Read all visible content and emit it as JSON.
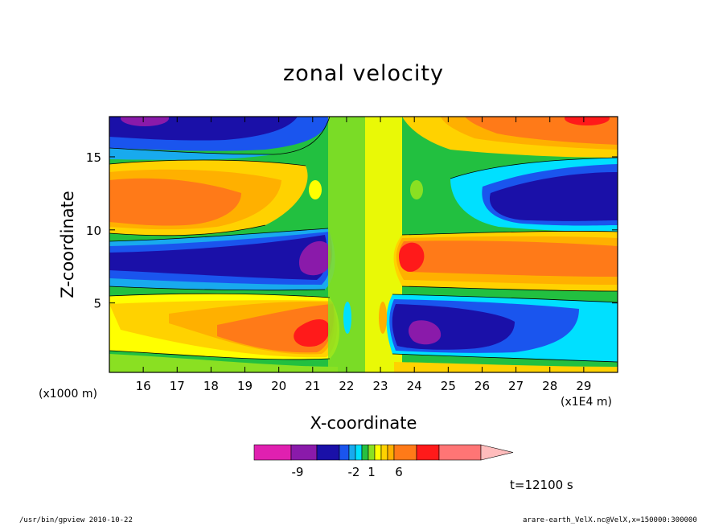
{
  "chart_data": {
    "type": "heatmap",
    "title": "zonal velocity",
    "xlabel": "X-coordinate",
    "ylabel": "Z-coordinate",
    "x_unit_left": "(x1000 m)",
    "x_unit_right": "(x1E4 m)",
    "x_ticks": [
      "16",
      "17",
      "18",
      "19",
      "20",
      "21",
      "22",
      "23",
      "24",
      "25",
      "26",
      "27",
      "28",
      "29"
    ],
    "x_tick_values": [
      16,
      17,
      18,
      19,
      20,
      21,
      22,
      23,
      24,
      25,
      26,
      27,
      28,
      29
    ],
    "xlim": [
      15.0,
      30.0
    ],
    "y_ticks": [
      "5",
      "10",
      "15"
    ],
    "y_tick_values": [
      5,
      10,
      15
    ],
    "ylim": [
      0.25,
      17.75
    ],
    "colorbar": {
      "colors": [
        "#e020b0",
        "#8a1aaa",
        "#1a10a8",
        "#1a55ee",
        "#18aaee",
        "#00e0ff",
        "#26c040",
        "#8ae022",
        "#ffff00",
        "#ffd200",
        "#ffb000",
        "#ff7a18",
        "#ff1a1a",
        "#ff7575",
        "#ffbcbc"
      ],
      "labels": [
        "-9",
        "-2",
        "1",
        "6"
      ]
    },
    "annotation": "t=12100 s",
    "footer_left": "/usr/bin/gpview   2010-10-22",
    "footer_right": "arare-earth_VelX.nc@VelX,x=150000:300000"
  }
}
